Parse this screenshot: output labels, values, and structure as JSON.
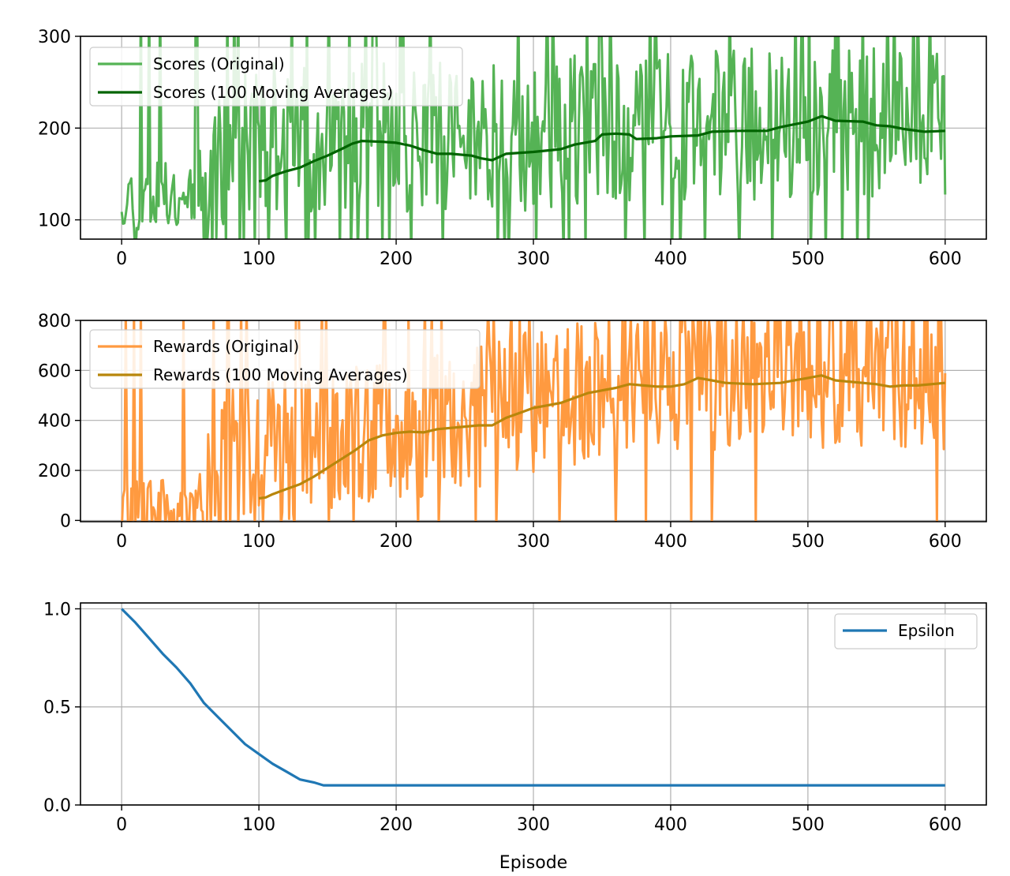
{
  "chart_data": [
    {
      "type": "line",
      "title": "",
      "xlabel": "",
      "ylabel": "",
      "xlim": [
        -30,
        630
      ],
      "ylim": [
        79,
        300
      ],
      "xticks": [
        0,
        100,
        200,
        300,
        400,
        500,
        600
      ],
      "yticks": [
        100,
        200,
        300
      ],
      "grid": true,
      "legend": "top-left",
      "series": [
        {
          "name": "Scores (Original)",
          "color": "#55b355",
          "noise": {
            "seed": 11,
            "ylow": 79,
            "yhigh": 300
          },
          "points": [
            [
              0,
              125
            ],
            [
              20,
              120
            ],
            [
              40,
              124
            ],
            [
              60,
              135
            ],
            [
              80,
              170
            ],
            [
              100,
              180
            ],
            [
              150,
              185
            ],
            [
              200,
              180
            ],
            [
              250,
              180
            ],
            [
              300,
              185
            ],
            [
              350,
              190
            ],
            [
              400,
              190
            ],
            [
              450,
              195
            ],
            [
              500,
              200
            ],
            [
              550,
              200
            ],
            [
              600,
              195
            ]
          ]
        },
        {
          "name": "Scores (100 Moving Averages)",
          "color": "#006400",
          "points": [
            [
              100,
              142
            ],
            [
              105,
              143
            ],
            [
              110,
              148
            ],
            [
              120,
              153
            ],
            [
              130,
              157
            ],
            [
              140,
              164
            ],
            [
              150,
              170
            ],
            [
              160,
              177
            ],
            [
              168,
              183
            ],
            [
              175,
              186
            ],
            [
              190,
              185
            ],
            [
              200,
              184
            ],
            [
              210,
              181
            ],
            [
              220,
              176
            ],
            [
              230,
              172
            ],
            [
              240,
              172
            ],
            [
              255,
              170
            ],
            [
              262,
              167
            ],
            [
              270,
              165
            ],
            [
              280,
              172
            ],
            [
              300,
              174
            ],
            [
              320,
              177
            ],
            [
              330,
              182
            ],
            [
              345,
              186
            ],
            [
              350,
              193
            ],
            [
              360,
              194
            ],
            [
              370,
              193
            ],
            [
              375,
              188
            ],
            [
              390,
              189
            ],
            [
              400,
              191
            ],
            [
              420,
              192
            ],
            [
              430,
              196
            ],
            [
              450,
              197
            ],
            [
              470,
              197
            ],
            [
              480,
              201
            ],
            [
              490,
              204
            ],
            [
              500,
              207
            ],
            [
              510,
              213
            ],
            [
              520,
              208
            ],
            [
              540,
              207
            ],
            [
              550,
              203
            ],
            [
              560,
              202
            ],
            [
              570,
              199
            ],
            [
              585,
              196
            ],
            [
              600,
              197
            ]
          ]
        }
      ]
    },
    {
      "type": "line",
      "title": "",
      "xlabel": "",
      "ylabel": "",
      "xlim": [
        -30,
        630
      ],
      "ylim": [
        -5,
        800
      ],
      "xticks": [
        0,
        100,
        200,
        300,
        400,
        500,
        600
      ],
      "yticks": [
        0,
        200,
        400,
        600,
        800
      ],
      "grid": true,
      "legend": "top-left",
      "series": [
        {
          "name": "Rewards (Original)",
          "color": "#ff9a40",
          "noise": {
            "seed": 29,
            "ylow": -5,
            "yhigh": 800
          },
          "points": [
            [
              0,
              10
            ],
            [
              30,
              15
            ],
            [
              60,
              60
            ],
            [
              80,
              200
            ],
            [
              100,
              250
            ],
            [
              150,
              300
            ],
            [
              200,
              350
            ],
            [
              250,
              380
            ],
            [
              300,
              450
            ],
            [
              350,
              520
            ],
            [
              400,
              540
            ],
            [
              450,
              550
            ],
            [
              500,
              560
            ],
            [
              550,
              550
            ],
            [
              600,
              550
            ]
          ]
        },
        {
          "name": "Rewards (100 Moving Averages)",
          "color": "#b8860b",
          "points": [
            [
              100,
              88
            ],
            [
              105,
              92
            ],
            [
              110,
              105
            ],
            [
              120,
              125
            ],
            [
              130,
              145
            ],
            [
              140,
              175
            ],
            [
              150,
              210
            ],
            [
              160,
              245
            ],
            [
              170,
              280
            ],
            [
              180,
              320
            ],
            [
              190,
              340
            ],
            [
              200,
              350
            ],
            [
              210,
              355
            ],
            [
              220,
              352
            ],
            [
              230,
              365
            ],
            [
              250,
              375
            ],
            [
              260,
              380
            ],
            [
              270,
              380
            ],
            [
              280,
              410
            ],
            [
              290,
              430
            ],
            [
              300,
              450
            ],
            [
              320,
              470
            ],
            [
              340,
              510
            ],
            [
              360,
              530
            ],
            [
              370,
              545
            ],
            [
              380,
              540
            ],
            [
              390,
              535
            ],
            [
              400,
              535
            ],
            [
              410,
              545
            ],
            [
              420,
              570
            ],
            [
              430,
              560
            ],
            [
              440,
              550
            ],
            [
              460,
              545
            ],
            [
              480,
              550
            ],
            [
              500,
              570
            ],
            [
              510,
              580
            ],
            [
              520,
              560
            ],
            [
              540,
              550
            ],
            [
              550,
              545
            ],
            [
              560,
              535
            ],
            [
              570,
              540
            ],
            [
              580,
              540
            ],
            [
              600,
              550
            ]
          ]
        }
      ]
    },
    {
      "type": "line",
      "title": "",
      "xlabel": "Episode",
      "ylabel": "",
      "xlim": [
        -30,
        630
      ],
      "ylim": [
        0.0,
        1.03
      ],
      "xticks": [
        0,
        100,
        200,
        300,
        400,
        500,
        600
      ],
      "yticks": [
        0.0,
        0.5,
        1.0
      ],
      "ytick_labels": [
        "0.0",
        "0.5",
        "1.0"
      ],
      "grid": true,
      "legend": "top-right",
      "series": [
        {
          "name": "Epsilon",
          "color": "#1f77b4",
          "points": [
            [
              0,
              1.0
            ],
            [
              10,
              0.93
            ],
            [
              20,
              0.85
            ],
            [
              30,
              0.77
            ],
            [
              40,
              0.7
            ],
            [
              50,
              0.62
            ],
            [
              60,
              0.52
            ],
            [
              70,
              0.45
            ],
            [
              80,
              0.38
            ],
            [
              90,
              0.31
            ],
            [
              100,
              0.26
            ],
            [
              110,
              0.21
            ],
            [
              120,
              0.17
            ],
            [
              130,
              0.13
            ],
            [
              140,
              0.115
            ],
            [
              147,
              0.1
            ],
            [
              200,
              0.1
            ],
            [
              300,
              0.1
            ],
            [
              400,
              0.1
            ],
            [
              500,
              0.1
            ],
            [
              600,
              0.1
            ]
          ]
        }
      ]
    }
  ]
}
